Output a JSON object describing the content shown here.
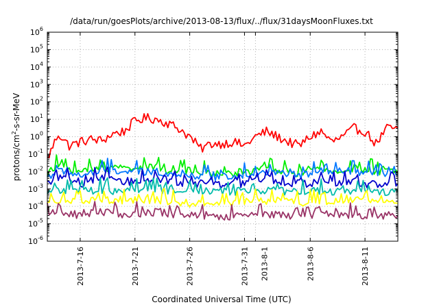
{
  "chart_data": {
    "type": "line",
    "title": "/data/run/goesPlots/archive/2013-08-13/flux/../flux/31daysMoonFluxes.txt",
    "xlabel": "Coordinated Universal Time (UTC)",
    "ylabel": {
      "pre": "protons/cm",
      "sup": "2",
      "post": "-s-sr-MeV"
    },
    "xlim": [
      "2013-07-13",
      "2013-08-14"
    ],
    "ylim": [
      1e-06,
      1000000.0
    ],
    "yscale": "log",
    "grid": true,
    "x_ticks": [
      "2013-7-16",
      "2013-7-21",
      "2013-7-26",
      "2013-7-31",
      "2013-8-1",
      "2013-8-6",
      "2013-8-11"
    ],
    "y_ticks": [
      {
        "base": "10",
        "exp": "-6"
      },
      {
        "base": "10",
        "exp": "-5"
      },
      {
        "base": "10",
        "exp": "-4"
      },
      {
        "base": "10",
        "exp": "-3"
      },
      {
        "base": "10",
        "exp": "-2"
      },
      {
        "base": "10",
        "exp": "-1"
      },
      {
        "base": "10",
        "exp": "0"
      },
      {
        "base": "10",
        "exp": "1"
      },
      {
        "base": "10",
        "exp": "2"
      },
      {
        "base": "10",
        "exp": "3"
      },
      {
        "base": "10",
        "exp": "4"
      },
      {
        "base": "10",
        "exp": "5"
      },
      {
        "base": "10",
        "exp": "6"
      }
    ],
    "x": [
      "2013-07-13",
      "2013-07-14",
      "2013-07-15",
      "2013-07-16",
      "2013-07-17",
      "2013-07-18",
      "2013-07-19",
      "2013-07-20",
      "2013-07-21",
      "2013-07-22",
      "2013-07-23",
      "2013-07-24",
      "2013-07-25",
      "2013-07-26",
      "2013-07-27",
      "2013-07-28",
      "2013-07-29",
      "2013-07-30",
      "2013-07-31",
      "2013-08-01",
      "2013-08-02",
      "2013-08-03",
      "2013-08-04",
      "2013-08-05",
      "2013-08-06",
      "2013-08-07",
      "2013-08-08",
      "2013-08-09",
      "2013-08-10",
      "2013-08-11",
      "2013-08-12",
      "2013-08-13",
      "2013-08-14"
    ],
    "series": [
      {
        "color": "#ff0000",
        "values": [
          0.05,
          1.5,
          0.3,
          0.5,
          0.7,
          0.6,
          1.5,
          2,
          8,
          12,
          10,
          6,
          3,
          1,
          0.2,
          0.4,
          0.4,
          0.5,
          0.3,
          1,
          2,
          1,
          0.5,
          0.3,
          1,
          2,
          0.5,
          1,
          3,
          2,
          0.4,
          3,
          3
        ]
      },
      {
        "color": "#00ee00",
        "values": [
          0.008,
          0.02,
          0.015,
          0.01,
          0.012,
          0.015,
          0.02,
          0.015,
          0.02,
          0.015,
          0.018,
          0.012,
          0.015,
          0.01,
          0.008,
          0.008,
          0.007,
          0.008,
          0.01,
          0.012,
          0.015,
          0.012,
          0.01,
          0.008,
          0.01,
          0.012,
          0.01,
          0.012,
          0.015,
          0.012,
          0.01,
          0.01,
          0.008
        ]
      },
      {
        "color": "#0077ff",
        "values": [
          0.005,
          0.01,
          0.008,
          0.006,
          0.008,
          0.01,
          0.012,
          0.009,
          0.01,
          0.009,
          0.01,
          0.008,
          0.008,
          0.006,
          0.006,
          0.005,
          0.005,
          0.006,
          0.007,
          0.008,
          0.009,
          0.008,
          0.007,
          0.006,
          0.007,
          0.008,
          0.007,
          0.008,
          0.009,
          0.008,
          0.007,
          0.007,
          0.006
        ]
      },
      {
        "color": "#0000cc",
        "values": [
          0.002,
          0.004,
          0.003,
          0.002,
          0.003,
          0.004,
          0.003,
          0.002,
          0.003,
          0.003,
          0.004,
          0.003,
          0.002,
          0.002,
          0.002,
          0.002,
          0.0015,
          0.002,
          0.002,
          0.003,
          0.003,
          0.002,
          0.002,
          0.002,
          0.002,
          0.003,
          0.002,
          0.002,
          0.003,
          0.002,
          0.002,
          0.002,
          0.002
        ]
      },
      {
        "color": "#00bbaa",
        "values": [
          0.0007,
          0.0009,
          0.0008,
          0.0007,
          0.0008,
          0.0009,
          0.0008,
          0.0008,
          0.0009,
          0.0008,
          0.0009,
          0.0008,
          0.0008,
          0.0007,
          0.0007,
          0.0007,
          0.0007,
          0.0007,
          0.0008,
          0.0008,
          0.0008,
          0.0008,
          0.0007,
          0.0007,
          0.0008,
          0.0008,
          0.0007,
          0.0008,
          0.0008,
          0.0008,
          0.0007,
          0.0007,
          0.0007
        ]
      },
      {
        "color": "#ffff00",
        "values": [
          0.00015,
          0.00025,
          0.0002,
          0.00015,
          0.0002,
          0.00025,
          0.0002,
          0.00018,
          0.00022,
          0.0002,
          0.00025,
          0.0002,
          0.00018,
          0.00015,
          0.00015,
          0.00015,
          0.00013,
          0.00015,
          0.00018,
          0.0002,
          0.00022,
          0.0002,
          0.00018,
          0.00015,
          0.00018,
          0.0002,
          0.00018,
          0.0002,
          0.00022,
          0.0002,
          0.00018,
          0.00018,
          0.00015
        ]
      },
      {
        "color": "#993366",
        "values": [
          3e-05,
          5e-05,
          4e-05,
          3e-05,
          4e-05,
          5e-05,
          4e-05,
          3e-05,
          4e-05,
          4e-05,
          5e-05,
          4e-05,
          3e-05,
          3e-05,
          3e-05,
          3e-05,
          2.5e-05,
          3e-05,
          3e-05,
          4e-05,
          4e-05,
          3e-05,
          3e-05,
          3e-05,
          3e-05,
          4e-05,
          3e-05,
          3e-05,
          4e-05,
          3e-05,
          3e-05,
          3e-05,
          3e-05
        ]
      }
    ]
  }
}
